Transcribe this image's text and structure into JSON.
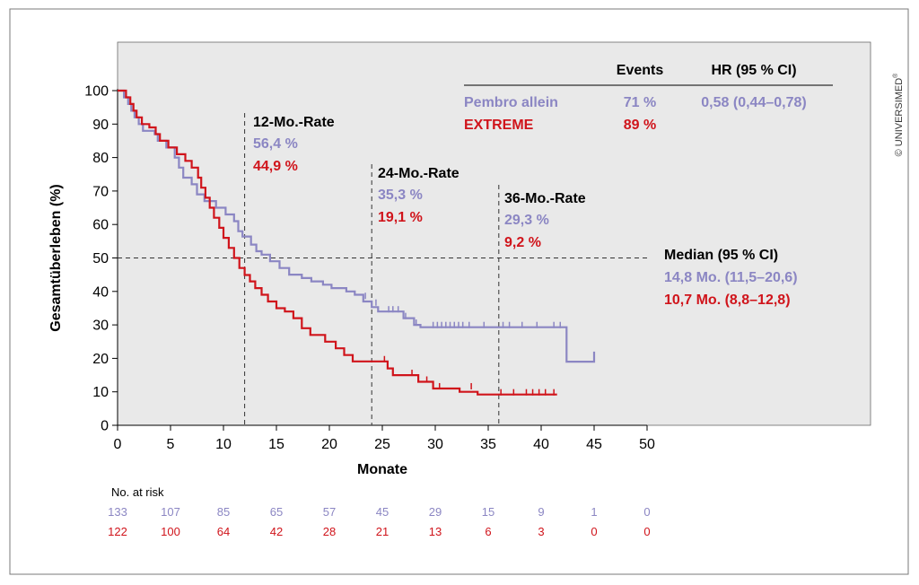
{
  "copyright": "© UNIVERSIMED",
  "copyright_mark": "®",
  "chart_data": {
    "type": "line",
    "xlabel": "Monate",
    "ylabel": "Gesamtüberleben (%)",
    "xlim": [
      0,
      50
    ],
    "ylim": [
      0,
      100
    ],
    "x_ticks": [
      0,
      5,
      10,
      15,
      20,
      25,
      30,
      35,
      40,
      45,
      50
    ],
    "y_ticks": [
      0,
      10,
      20,
      30,
      40,
      50,
      60,
      70,
      80,
      90,
      100
    ],
    "background": "#e9e9e9",
    "grid": false,
    "colors": {
      "pembro": "#8b86c3",
      "extreme": "#d0141b",
      "text": "#000000"
    },
    "series": [
      {
        "name": "Pembro allein",
        "color": "#8b86c3",
        "points": [
          [
            0,
            100
          ],
          [
            0.6,
            100
          ],
          [
            0.6,
            98
          ],
          [
            1,
            98
          ],
          [
            1,
            96
          ],
          [
            1.3,
            96
          ],
          [
            1.3,
            94
          ],
          [
            1.6,
            94
          ],
          [
            1.6,
            92
          ],
          [
            2,
            92
          ],
          [
            2,
            90
          ],
          [
            2.4,
            90
          ],
          [
            2.4,
            88
          ],
          [
            3.5,
            88
          ],
          [
            3.5,
            87
          ],
          [
            3.8,
            87
          ],
          [
            3.8,
            85
          ],
          [
            4.6,
            85
          ],
          [
            4.6,
            83
          ],
          [
            5.4,
            83
          ],
          [
            5.4,
            80
          ],
          [
            5.8,
            80
          ],
          [
            5.8,
            77
          ],
          [
            6.2,
            77
          ],
          [
            6.2,
            74
          ],
          [
            7,
            74
          ],
          [
            7,
            72
          ],
          [
            7.5,
            72
          ],
          [
            7.5,
            69
          ],
          [
            8.2,
            69
          ],
          [
            8.2,
            67
          ],
          [
            9.3,
            67
          ],
          [
            9.3,
            65
          ],
          [
            10.2,
            65
          ],
          [
            10.2,
            63
          ],
          [
            11,
            63
          ],
          [
            11,
            61
          ],
          [
            11.4,
            61
          ],
          [
            11.4,
            58
          ],
          [
            11.8,
            58
          ],
          [
            11.8,
            56.4
          ],
          [
            12.6,
            56.4
          ],
          [
            12.6,
            54
          ],
          [
            13.1,
            54
          ],
          [
            13.1,
            52
          ],
          [
            13.6,
            52
          ],
          [
            13.6,
            51
          ],
          [
            14.4,
            51
          ],
          [
            14.4,
            49
          ],
          [
            15.3,
            49
          ],
          [
            15.3,
            47
          ],
          [
            16.2,
            47
          ],
          [
            16.2,
            45
          ],
          [
            17.4,
            45
          ],
          [
            17.4,
            44
          ],
          [
            18.3,
            44
          ],
          [
            18.3,
            43
          ],
          [
            19.4,
            43
          ],
          [
            19.4,
            42
          ],
          [
            20.2,
            42
          ],
          [
            20.2,
            41
          ],
          [
            21.6,
            41
          ],
          [
            21.6,
            40
          ],
          [
            22.4,
            40
          ],
          [
            22.4,
            39
          ],
          [
            23.2,
            39
          ],
          [
            23.2,
            37
          ],
          [
            24,
            37
          ],
          [
            24,
            35.3
          ],
          [
            24.6,
            35.3
          ],
          [
            24.6,
            34
          ],
          [
            27,
            34
          ],
          [
            27,
            32
          ],
          [
            28,
            32
          ],
          [
            28,
            30
          ],
          [
            28.6,
            30
          ],
          [
            28.6,
            29.3
          ],
          [
            42.4,
            29.3
          ],
          [
            42.4,
            19
          ],
          [
            45,
            19
          ],
          [
            45,
            22
          ]
        ],
        "censor": [
          [
            23.4,
            38
          ],
          [
            24.4,
            36
          ],
          [
            25.6,
            34
          ],
          [
            26,
            34
          ],
          [
            26.5,
            34
          ],
          [
            27.2,
            32
          ],
          [
            28.2,
            30
          ],
          [
            29.8,
            29.3
          ],
          [
            30.2,
            29.3
          ],
          [
            30.6,
            29.3
          ],
          [
            31,
            29.3
          ],
          [
            31.4,
            29.3
          ],
          [
            31.8,
            29.3
          ],
          [
            32.2,
            29.3
          ],
          [
            32.6,
            29.3
          ],
          [
            33.2,
            29.3
          ],
          [
            34.6,
            29.3
          ],
          [
            36.4,
            29.3
          ],
          [
            37,
            29.3
          ],
          [
            38.2,
            29.3
          ],
          [
            39.6,
            29.3
          ],
          [
            41.2,
            29.3
          ],
          [
            41.8,
            29.3
          ]
        ]
      },
      {
        "name": "EXTREME",
        "color": "#d0141b",
        "points": [
          [
            0,
            100
          ],
          [
            0.8,
            100
          ],
          [
            0.8,
            98
          ],
          [
            1.2,
            98
          ],
          [
            1.2,
            96
          ],
          [
            1.5,
            96
          ],
          [
            1.5,
            94
          ],
          [
            1.8,
            94
          ],
          [
            1.8,
            92
          ],
          [
            2.3,
            92
          ],
          [
            2.3,
            90
          ],
          [
            3,
            90
          ],
          [
            3,
            89
          ],
          [
            3.6,
            89
          ],
          [
            3.6,
            87
          ],
          [
            4,
            87
          ],
          [
            4,
            85
          ],
          [
            4.8,
            85
          ],
          [
            4.8,
            83
          ],
          [
            5.6,
            83
          ],
          [
            5.6,
            81
          ],
          [
            6.4,
            81
          ],
          [
            6.4,
            79
          ],
          [
            7,
            79
          ],
          [
            7,
            77
          ],
          [
            7.6,
            77
          ],
          [
            7.6,
            74
          ],
          [
            7.9,
            74
          ],
          [
            7.9,
            71
          ],
          [
            8.3,
            71
          ],
          [
            8.3,
            68
          ],
          [
            8.7,
            68
          ],
          [
            8.7,
            65
          ],
          [
            9.1,
            65
          ],
          [
            9.1,
            62
          ],
          [
            9.6,
            62
          ],
          [
            9.6,
            59
          ],
          [
            10,
            59
          ],
          [
            10,
            56
          ],
          [
            10.5,
            56
          ],
          [
            10.5,
            53
          ],
          [
            11,
            53
          ],
          [
            11,
            50
          ],
          [
            11.5,
            50
          ],
          [
            11.5,
            47
          ],
          [
            12,
            47
          ],
          [
            12,
            44.9
          ],
          [
            12.5,
            44.9
          ],
          [
            12.5,
            43
          ],
          [
            13,
            43
          ],
          [
            13,
            41
          ],
          [
            13.6,
            41
          ],
          [
            13.6,
            39
          ],
          [
            14.2,
            39
          ],
          [
            14.2,
            37
          ],
          [
            15,
            37
          ],
          [
            15,
            35
          ],
          [
            15.8,
            35
          ],
          [
            15.8,
            34
          ],
          [
            16.6,
            34
          ],
          [
            16.6,
            32
          ],
          [
            17.4,
            32
          ],
          [
            17.4,
            29
          ],
          [
            18.2,
            29
          ],
          [
            18.2,
            27
          ],
          [
            19.6,
            27
          ],
          [
            19.6,
            25
          ],
          [
            20.6,
            25
          ],
          [
            20.6,
            23
          ],
          [
            21.4,
            23
          ],
          [
            21.4,
            21
          ],
          [
            22.2,
            21
          ],
          [
            22.2,
            19.1
          ],
          [
            25.5,
            19.1
          ],
          [
            25.5,
            17
          ],
          [
            26,
            17
          ],
          [
            26,
            15
          ],
          [
            28.4,
            15
          ],
          [
            28.4,
            13
          ],
          [
            29.8,
            13
          ],
          [
            29.8,
            11
          ],
          [
            32.3,
            11
          ],
          [
            32.3,
            10
          ],
          [
            34,
            10
          ],
          [
            34,
            9.2
          ],
          [
            41.5,
            9.2
          ]
        ],
        "censor": [
          [
            25.2,
            19.1
          ],
          [
            27.8,
            15
          ],
          [
            29.2,
            13
          ],
          [
            30.4,
            11
          ],
          [
            33.4,
            11
          ],
          [
            36.2,
            9.2
          ],
          [
            37.4,
            9.2
          ],
          [
            38.6,
            9.2
          ],
          [
            39.2,
            9.2
          ],
          [
            39.8,
            9.2
          ],
          [
            40.4,
            9.2
          ],
          [
            41.2,
            9.2
          ]
        ]
      }
    ],
    "median_line": {
      "y": 50,
      "x_end": 50
    },
    "rate_markers": [
      {
        "month": 12,
        "label": "12-Mo.-Rate",
        "pembro": "56,4 %",
        "extreme": "44,9 %"
      },
      {
        "month": 24,
        "label": "24-Mo.-Rate",
        "pembro": "35,3 %",
        "extreme": "19,1 %"
      },
      {
        "month": 36,
        "label": "36-Mo.-Rate",
        "pembro": "29,3 %",
        "extreme": "9,2 %"
      }
    ],
    "median": {
      "title": "Median (95 % CI)",
      "pembro": "14,8 Mo. (11,5–20,6)",
      "extreme": "10,7 Mo. (8,8–12,8)"
    },
    "table": {
      "headers": [
        "Events",
        "HR (95 % CI)"
      ],
      "rows": [
        {
          "name": "Pembro allein",
          "events": "71 %",
          "hr": "0,58 (0,44–0,78)"
        },
        {
          "name": "EXTREME",
          "events": "89 %",
          "hr": ""
        }
      ]
    },
    "at_risk": {
      "label": "No. at risk",
      "x": [
        0,
        5,
        10,
        15,
        20,
        25,
        30,
        35,
        40,
        45,
        50
      ],
      "pembro": [
        "133",
        "107",
        "85",
        "65",
        "57",
        "45",
        "29",
        "15",
        "9",
        "1",
        "0"
      ],
      "extreme": [
        "122",
        "100",
        "64",
        "42",
        "28",
        "21",
        "13",
        "6",
        "3",
        "0",
        "0"
      ]
    }
  }
}
